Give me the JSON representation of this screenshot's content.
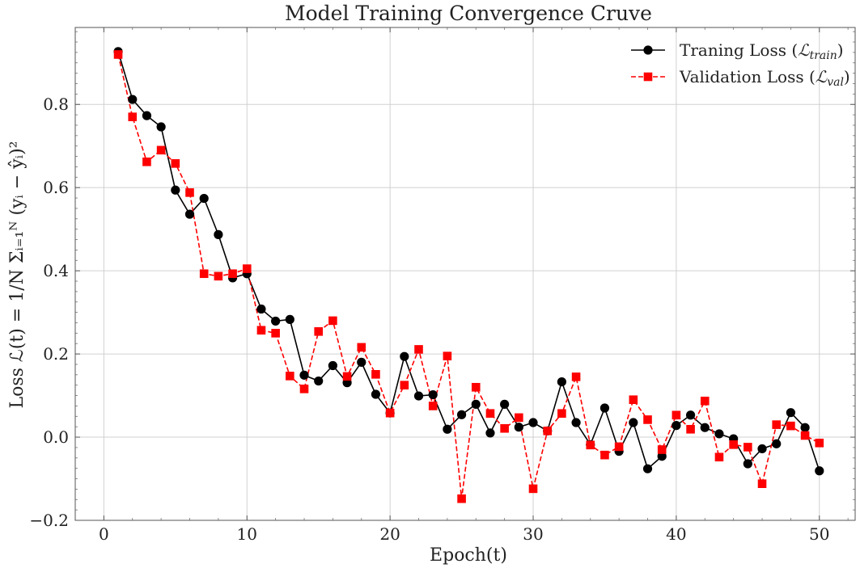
{
  "chart_data": {
    "type": "line",
    "title": "Model Training Convergence Cruve",
    "xlabel": "Epoch(t)",
    "ylabel": "Loss  ℒ(t) = 1/N Σᵢ₌₁ᴺ (yᵢ − ŷᵢ)²",
    "xlim": [
      -2,
      52.5
    ],
    "ylim": [
      -0.2,
      0.985
    ],
    "xticks": [
      0,
      10,
      20,
      30,
      40,
      50
    ],
    "xtick_labels": [
      "0",
      "10",
      "20",
      "30",
      "40",
      "50"
    ],
    "yticks": [
      -0.2,
      0.0,
      0.2,
      0.4,
      0.6,
      0.8
    ],
    "ytick_labels": [
      "−0.2",
      "0.0",
      "0.2",
      "0.4",
      "0.6",
      "0.8"
    ],
    "grid": true,
    "legend_position": "top-right",
    "x": [
      1,
      2,
      3,
      4,
      5,
      6,
      7,
      8,
      9,
      10,
      11,
      12,
      13,
      14,
      15,
      16,
      17,
      18,
      19,
      20,
      21,
      22,
      23,
      24,
      25,
      26,
      27,
      28,
      29,
      30,
      31,
      32,
      33,
      34,
      35,
      36,
      37,
      38,
      39,
      40,
      41,
      42,
      43,
      44,
      45,
      46,
      47,
      48,
      49,
      50
    ],
    "series": [
      {
        "name": "Traning Loss (ℒtrain)",
        "name_main": "Traning Loss (",
        "name_sym": "ℒ",
        "name_sub": "train",
        "name_end": ")",
        "color": "#000000",
        "marker": "circle",
        "linestyle": "solid",
        "values": [
          0.927,
          0.812,
          0.773,
          0.746,
          0.594,
          0.536,
          0.574,
          0.487,
          0.383,
          0.393,
          0.308,
          0.279,
          0.283,
          0.149,
          0.135,
          0.172,
          0.131,
          0.18,
          0.103,
          0.058,
          0.194,
          0.099,
          0.102,
          0.019,
          0.054,
          0.079,
          0.01,
          0.079,
          0.024,
          0.035,
          0.015,
          0.133,
          0.035,
          -0.018,
          0.07,
          -0.034,
          0.035,
          -0.076,
          -0.046,
          0.028,
          0.053,
          0.023,
          0.008,
          -0.004,
          -0.064,
          -0.028,
          -0.016,
          0.059,
          0.023,
          -0.081
        ]
      },
      {
        "name": "Validation Loss (ℒval)",
        "name_main": "Validation Loss (",
        "name_sym": "ℒ",
        "name_sub": "val",
        "name_end": ")",
        "color": "#ff0000",
        "marker": "square",
        "linestyle": "dashed",
        "values": [
          0.92,
          0.77,
          0.662,
          0.69,
          0.658,
          0.588,
          0.393,
          0.387,
          0.393,
          0.405,
          0.257,
          0.25,
          0.147,
          0.116,
          0.254,
          0.28,
          0.146,
          0.216,
          0.151,
          0.058,
          0.125,
          0.211,
          0.075,
          0.195,
          -0.148,
          0.12,
          0.057,
          0.021,
          0.047,
          -0.124,
          0.015,
          0.057,
          0.145,
          -0.019,
          -0.043,
          -0.023,
          0.09,
          0.042,
          -0.03,
          0.053,
          0.019,
          0.087,
          -0.048,
          -0.018,
          -0.024,
          -0.112,
          0.03,
          0.027,
          0.004,
          -0.014
        ]
      }
    ]
  }
}
